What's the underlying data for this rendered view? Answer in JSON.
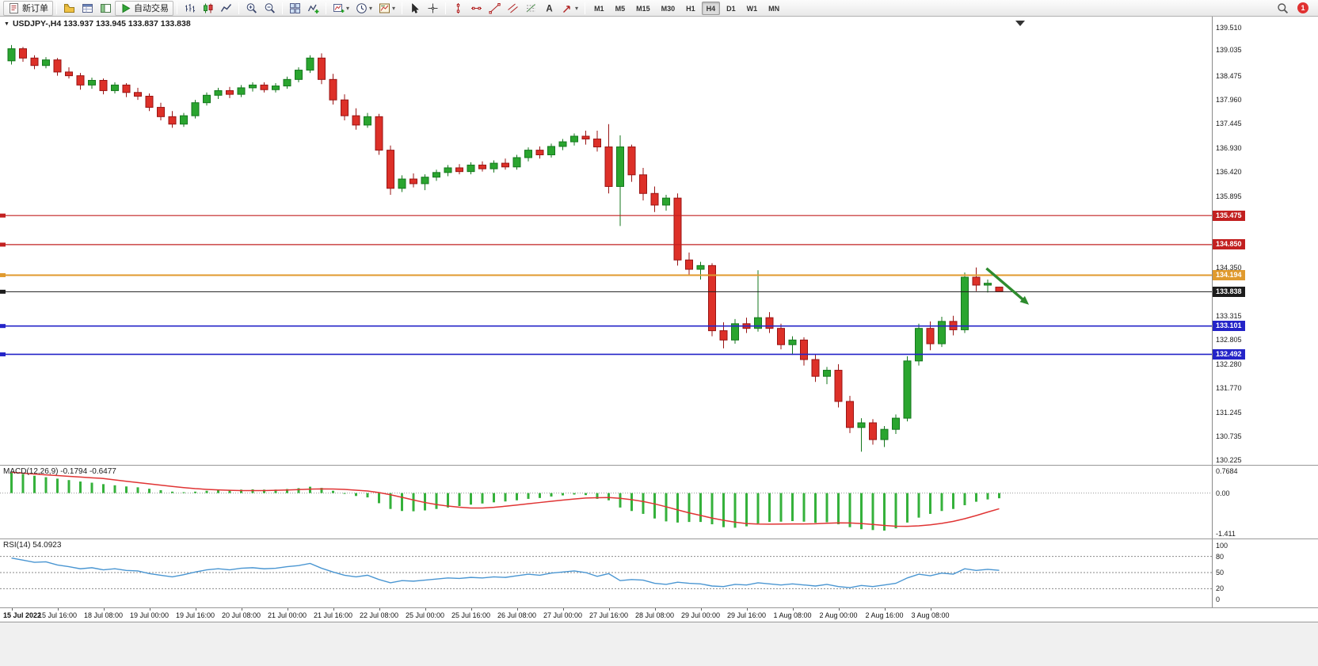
{
  "app": {
    "toolbar": {
      "groups": [
        [
          {
            "name": "new-order-button",
            "icon": "new-order",
            "label": "新订单",
            "raised": true
          }
        ],
        [
          {
            "name": "profiles-button",
            "icon": "profiles"
          },
          {
            "name": "market-watch-button",
            "icon": "market-watch"
          },
          {
            "name": "navigator-button",
            "icon": "navigator"
          },
          {
            "name": "autotrading-button",
            "icon": "play",
            "label": "自动交易",
            "raised": true
          }
        ],
        [
          {
            "name": "bar-chart-button",
            "icon": "bars"
          },
          {
            "name": "candle-chart-button",
            "icon": "candles"
          },
          {
            "name": "line-chart-button",
            "icon": "linechart"
          }
        ],
        [
          {
            "name": "zoom-in-button",
            "icon": "zoom-in"
          },
          {
            "name": "zoom-out-button",
            "icon": "zoom-out"
          }
        ],
        [
          {
            "name": "tile-windows-button",
            "icon": "tile"
          },
          {
            "name": "indicators-button",
            "icon": "indicators"
          }
        ],
        [
          {
            "name": "new-chart-button",
            "icon": "new-chart",
            "dropdown": true
          },
          {
            "name": "period-button",
            "icon": "clock",
            "dropdown": true
          },
          {
            "name": "template-button",
            "icon": "template",
            "dropdown": true
          }
        ],
        [
          {
            "name": "cursor-button",
            "icon": "cursor"
          },
          {
            "name": "crosshair-button",
            "icon": "crosshair"
          }
        ],
        [
          {
            "name": "vline-button",
            "icon": "vline"
          },
          {
            "name": "hline-button",
            "icon": "hline"
          },
          {
            "name": "trendline-button",
            "icon": "trendline"
          },
          {
            "name": "channel-button",
            "icon": "channel"
          },
          {
            "name": "fibonacci-button",
            "icon": "fibo"
          },
          {
            "name": "text-button",
            "icon": "text"
          },
          {
            "name": "arrow-tools-button",
            "icon": "arrows",
            "dropdown": true
          }
        ]
      ],
      "timeframes": [
        "M1",
        "M5",
        "M15",
        "M30",
        "H1",
        "H4",
        "D1",
        "W1",
        "MN"
      ],
      "active_timeframe": "H4",
      "notification_count": "1"
    }
  },
  "chart_data": {
    "type": "candlestick",
    "symbol": "USDJPY-",
    "timeframe": "H4",
    "symbol_line": "USDJPY-,H4  133.937 133.945 133.837 133.838",
    "ohlc_current": {
      "open": 133.937,
      "high": 133.945,
      "low": 133.837,
      "close": 133.838
    },
    "ylim": [
      130.1,
      139.75
    ],
    "price_axis_ticks": [
      "139.510",
      "139.035",
      "138.475",
      "137.960",
      "137.445",
      "136.930",
      "136.420",
      "135.895",
      "134.350",
      "133.315",
      "132.805",
      "132.280",
      "131.770",
      "131.245",
      "130.735",
      "130.225"
    ],
    "hlines": [
      {
        "price": 135.475,
        "label": "135.475",
        "color": "#c22020",
        "w": 1.2
      },
      {
        "price": 134.85,
        "label": "134.850",
        "color": "#c22020",
        "w": 1.2
      },
      {
        "price": 134.194,
        "label": "134.194",
        "color": "#e09a2e",
        "w": 2
      },
      {
        "price": 133.838,
        "label": "133.838",
        "color": "#1c1c1c",
        "w": 1
      },
      {
        "price": 133.101,
        "label": "133.101",
        "color": "#2424c8",
        "w": 1.6
      },
      {
        "price": 132.492,
        "label": "132.492",
        "color": "#2424c8",
        "w": 1.6
      }
    ],
    "candles": [
      [
        138.8,
        139.14,
        138.72,
        139.06
      ],
      [
        139.06,
        139.1,
        138.78,
        138.86
      ],
      [
        138.86,
        138.92,
        138.62,
        138.7
      ],
      [
        138.7,
        138.88,
        138.64,
        138.82
      ],
      [
        138.82,
        138.86,
        138.48,
        138.56
      ],
      [
        138.56,
        138.66,
        138.42,
        138.48
      ],
      [
        138.48,
        138.54,
        138.18,
        138.28
      ],
      [
        138.28,
        138.44,
        138.2,
        138.38
      ],
      [
        138.38,
        138.42,
        138.08,
        138.16
      ],
      [
        138.16,
        138.34,
        138.1,
        138.28
      ],
      [
        138.28,
        138.32,
        138.02,
        138.12
      ],
      [
        138.12,
        138.22,
        137.96,
        138.04
      ],
      [
        138.04,
        138.1,
        137.72,
        137.8
      ],
      [
        137.8,
        137.9,
        137.52,
        137.6
      ],
      [
        137.6,
        137.72,
        137.36,
        137.44
      ],
      [
        137.44,
        137.68,
        137.38,
        137.62
      ],
      [
        137.62,
        137.96,
        137.56,
        137.9
      ],
      [
        137.9,
        138.12,
        137.84,
        138.06
      ],
      [
        138.06,
        138.22,
        137.98,
        138.16
      ],
      [
        138.16,
        138.24,
        138.0,
        138.08
      ],
      [
        138.08,
        138.28,
        138.02,
        138.22
      ],
      [
        138.22,
        138.34,
        138.14,
        138.28
      ],
      [
        138.28,
        138.34,
        138.12,
        138.18
      ],
      [
        138.18,
        138.32,
        138.12,
        138.26
      ],
      [
        138.26,
        138.46,
        138.2,
        138.4
      ],
      [
        138.4,
        138.66,
        138.34,
        138.6
      ],
      [
        138.6,
        138.92,
        138.54,
        138.86
      ],
      [
        138.86,
        138.96,
        138.3,
        138.4
      ],
      [
        138.4,
        138.52,
        137.86,
        137.96
      ],
      [
        137.96,
        138.08,
        137.52,
        137.62
      ],
      [
        137.62,
        137.78,
        137.32,
        137.42
      ],
      [
        137.42,
        137.68,
        137.36,
        137.6
      ],
      [
        137.6,
        137.66,
        136.78,
        136.88
      ],
      [
        136.88,
        136.98,
        135.92,
        136.06
      ],
      [
        136.06,
        136.34,
        135.98,
        136.26
      ],
      [
        136.26,
        136.38,
        136.08,
        136.16
      ],
      [
        136.16,
        136.36,
        136.02,
        136.3
      ],
      [
        136.3,
        136.46,
        136.22,
        136.4
      ],
      [
        136.4,
        136.56,
        136.32,
        136.5
      ],
      [
        136.5,
        136.58,
        136.36,
        136.42
      ],
      [
        136.42,
        136.62,
        136.36,
        136.56
      ],
      [
        136.56,
        136.64,
        136.42,
        136.48
      ],
      [
        136.48,
        136.66,
        136.4,
        136.6
      ],
      [
        136.6,
        136.7,
        136.46,
        136.52
      ],
      [
        136.52,
        136.78,
        136.46,
        136.72
      ],
      [
        136.72,
        136.94,
        136.64,
        136.88
      ],
      [
        136.88,
        136.96,
        136.7,
        136.78
      ],
      [
        136.78,
        137.02,
        136.72,
        136.96
      ],
      [
        136.96,
        137.12,
        136.88,
        137.06
      ],
      [
        137.06,
        137.24,
        136.98,
        137.18
      ],
      [
        137.18,
        137.3,
        137.0,
        137.12
      ],
      [
        137.12,
        137.3,
        136.85,
        136.95
      ],
      [
        136.95,
        137.44,
        135.95,
        136.1
      ],
      [
        136.1,
        137.2,
        135.25,
        136.95
      ],
      [
        136.95,
        137.0,
        136.2,
        136.35
      ],
      [
        136.35,
        136.5,
        135.8,
        135.95
      ],
      [
        135.95,
        136.1,
        135.55,
        135.7
      ],
      [
        135.7,
        135.92,
        135.58,
        135.85
      ],
      [
        135.85,
        135.95,
        134.4,
        134.52
      ],
      [
        134.52,
        134.68,
        134.2,
        134.32
      ],
      [
        134.32,
        134.48,
        134.1,
        134.4
      ],
      [
        134.4,
        134.45,
        132.88,
        133.0
      ],
      [
        133.0,
        133.18,
        132.62,
        132.8
      ],
      [
        132.8,
        133.25,
        132.72,
        133.15
      ],
      [
        133.15,
        133.28,
        132.95,
        133.05
      ],
      [
        133.05,
        134.3,
        132.98,
        133.28
      ],
      [
        133.28,
        133.4,
        132.95,
        133.05
      ],
      [
        133.05,
        133.15,
        132.6,
        132.7
      ],
      [
        132.7,
        132.88,
        132.48,
        132.8
      ],
      [
        132.8,
        132.86,
        132.25,
        132.38
      ],
      [
        132.38,
        132.5,
        131.9,
        132.02
      ],
      [
        132.02,
        132.22,
        131.85,
        132.15
      ],
      [
        132.15,
        132.28,
        131.35,
        131.48
      ],
      [
        131.48,
        131.6,
        130.8,
        130.92
      ],
      [
        130.92,
        131.12,
        130.4,
        131.02
      ],
      [
        131.02,
        131.1,
        130.55,
        130.66
      ],
      [
        130.66,
        130.95,
        130.5,
        130.88
      ],
      [
        130.88,
        131.2,
        130.78,
        131.12
      ],
      [
        131.12,
        132.45,
        131.05,
        132.35
      ],
      [
        132.35,
        133.15,
        132.25,
        133.05
      ],
      [
        133.05,
        133.2,
        132.58,
        132.72
      ],
      [
        132.72,
        133.3,
        132.65,
        133.2
      ],
      [
        133.2,
        133.32,
        132.9,
        133.02
      ],
      [
        133.02,
        134.25,
        132.95,
        134.15
      ],
      [
        134.15,
        134.36,
        133.85,
        133.98
      ],
      [
        133.98,
        134.1,
        133.82,
        134.02
      ],
      [
        133.937,
        133.945,
        133.837,
        133.838
      ]
    ],
    "time_labels": [
      {
        "i": 0,
        "t": "15 Jul 2022"
      },
      {
        "i": 4,
        "t": "15 Jul 16:00"
      },
      {
        "i": 8,
        "t": "18 Jul 08:00"
      },
      {
        "i": 12,
        "t": "19 Jul 00:00"
      },
      {
        "i": 16,
        "t": "19 Jul 16:00"
      },
      {
        "i": 20,
        "t": "20 Jul 08:00"
      },
      {
        "i": 24,
        "t": "21 Jul 00:00"
      },
      {
        "i": 28,
        "t": "21 Jul 16:00"
      },
      {
        "i": 32,
        "t": "22 Jul 08:00"
      },
      {
        "i": 36,
        "t": "25 Jul 00:00"
      },
      {
        "i": 40,
        "t": "25 Jul 16:00"
      },
      {
        "i": 44,
        "t": "26 Jul 08:00"
      },
      {
        "i": 48,
        "t": "27 Jul 00:00"
      },
      {
        "i": 52,
        "t": "27 Jul 16:00"
      },
      {
        "i": 56,
        "t": "28 Jul 08:00"
      },
      {
        "i": 60,
        "t": "29 Jul 00:00"
      },
      {
        "i": 64,
        "t": "29 Jul 16:00"
      },
      {
        "i": 68,
        "t": "1 Aug 08:00"
      },
      {
        "i": 72,
        "t": "2 Aug 00:00"
      },
      {
        "i": 76,
        "t": "2 Aug 16:00"
      },
      {
        "i": 80,
        "t": "3 Aug 08:00"
      }
    ],
    "arrow": {
      "from_index": 85.2,
      "from_price": 134.34,
      "to_index": 88.9,
      "to_price": 133.56,
      "color": "#2e8b2e"
    },
    "macd": {
      "label": "MACD(12,26,9) -0.1794 -0.6477",
      "values_current": {
        "main": -0.1794,
        "signal": -0.6477
      },
      "histogram": [
        0.72,
        0.66,
        0.6,
        0.55,
        0.5,
        0.45,
        0.4,
        0.36,
        0.31,
        0.27,
        0.23,
        0.2,
        0.15,
        0.1,
        0.05,
        0.03,
        0.05,
        0.08,
        0.1,
        0.11,
        0.12,
        0.13,
        0.12,
        0.12,
        0.14,
        0.17,
        0.22,
        0.18,
        0.08,
        -0.02,
        -0.1,
        -0.15,
        -0.35,
        -0.55,
        -0.62,
        -0.63,
        -0.6,
        -0.55,
        -0.5,
        -0.45,
        -0.4,
        -0.36,
        -0.32,
        -0.29,
        -0.25,
        -0.2,
        -0.17,
        -0.12,
        -0.08,
        -0.05,
        -0.07,
        -0.2,
        -0.25,
        -0.5,
        -0.62,
        -0.72,
        -0.88,
        -0.98,
        -1.02,
        -1.0,
        -1.0,
        -1.08,
        -1.18,
        -1.2,
        -1.15,
        -1.05,
        -1.0,
        -0.99,
        -0.97,
        -0.99,
        -1.03,
        -1.01,
        -1.08,
        -1.18,
        -1.25,
        -1.28,
        -1.3,
        -1.22,
        -1.02,
        -0.85,
        -0.72,
        -0.62,
        -0.55,
        -0.42,
        -0.3,
        -0.22,
        -0.1794
      ],
      "signal_period": 9,
      "axis_ticks": [
        {
          "v": 0.7684,
          "text": "0.7684"
        },
        {
          "v": 0,
          "text": "0.00"
        },
        {
          "v": -1.411,
          "text": "-1.411"
        }
      ],
      "vlim": [
        -1.6,
        0.95
      ],
      "colors": {
        "histogram": "#35b13b",
        "signal": "#e03434"
      }
    },
    "rsi": {
      "label": "RSI(14) 54.0923",
      "value_current": 54.0923,
      "values": [
        77,
        73,
        69,
        70,
        64,
        61,
        57,
        59,
        55,
        57,
        54,
        53,
        48,
        45,
        42,
        46,
        51,
        55,
        57,
        55,
        58,
        59,
        57,
        58,
        61,
        63,
        67,
        58,
        51,
        45,
        42,
        45,
        37,
        31,
        35,
        34,
        36,
        38,
        40,
        39,
        41,
        40,
        42,
        41,
        44,
        47,
        45,
        49,
        51,
        53,
        50,
        43,
        48,
        35,
        37,
        36,
        30,
        28,
        32,
        30,
        29,
        25,
        24,
        28,
        27,
        31,
        29,
        27,
        29,
        27,
        25,
        28,
        24,
        22,
        26,
        24,
        27,
        30,
        40,
        47,
        44,
        49,
        47,
        57,
        54,
        56,
        54.09
      ],
      "levels": [
        80,
        50,
        20
      ],
      "axis_ticks": [
        {
          "v": 100,
          "text": "100"
        },
        {
          "v": 80,
          "text": "80"
        },
        {
          "v": 50,
          "text": "50"
        },
        {
          "v": 20,
          "text": "20"
        },
        {
          "v": 0,
          "text": "0"
        }
      ],
      "color": "#4a96d2"
    },
    "colors": {
      "candle_up": "#2aa52f",
      "candle_up_stroke": "#14771d",
      "candle_down": "#dd3028",
      "candle_down_stroke": "#991414"
    }
  }
}
